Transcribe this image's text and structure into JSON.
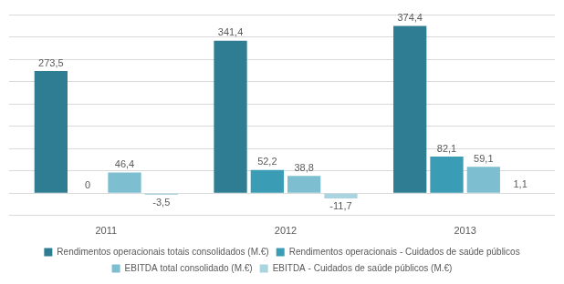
{
  "chart_data": {
    "type": "bar",
    "categories": [
      "2011",
      "2012",
      "2013"
    ],
    "series": [
      {
        "name": "Rendimentos operacionais totais consolidados (M.€)",
        "color": "#2f7d92",
        "values": [
          273.5,
          341.4,
          374.4
        ],
        "value_labels": [
          "273,5",
          "341,4",
          "374,4"
        ]
      },
      {
        "name": "Rendimentos operacionais - Cuidados de saúde públicos",
        "color": "#3a9db5",
        "values": [
          0,
          52.2,
          82.1
        ],
        "value_labels": [
          "0",
          "52,2",
          "82,1"
        ]
      },
      {
        "name": "EBITDA total consolidado (M.€)",
        "color": "#7dbfd0",
        "values": [
          46.4,
          38.8,
          59.1
        ],
        "value_labels": [
          "46,4",
          "38,8",
          "59,1"
        ]
      },
      {
        "name": "EBITDA - Cuidados de saúde públicos (M.€)",
        "color": "#a9d5e1",
        "values": [
          -3.5,
          -11.7,
          1.1
        ],
        "value_labels": [
          "-3,5",
          "-11,7",
          "1,1"
        ]
      }
    ],
    "ylim": [
      -50,
      400
    ],
    "yticks": [
      -50,
      0,
      50,
      100,
      150,
      200,
      250,
      300,
      350,
      400
    ],
    "grid": true,
    "legend": "bottom",
    "data_labels": true,
    "tick_labels": "x"
  }
}
